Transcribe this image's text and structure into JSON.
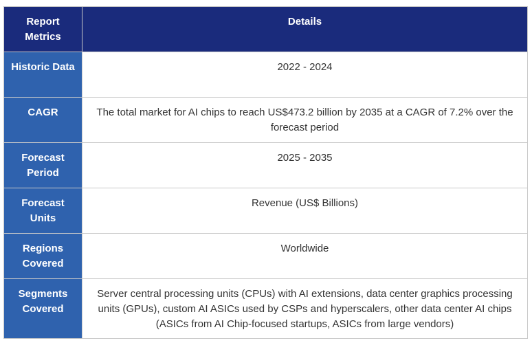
{
  "table": {
    "header": {
      "metric_label": "Report Metrics",
      "details_label": "Details"
    },
    "rows": [
      {
        "metric": "Historic Data",
        "details": "2022 - 2024"
      },
      {
        "metric": "CAGR",
        "details": "The total market for AI chips to reach US$473.2 billion by 2035 at a CAGR of 7.2% over the forecast period"
      },
      {
        "metric": "Forecast Period",
        "details": "2025 - 2035"
      },
      {
        "metric": "Forecast Units",
        "details": "Revenue (US$ Billions)"
      },
      {
        "metric": "Regions Covered",
        "details": "Worldwide"
      },
      {
        "metric": "Segments Covered",
        "details": "Server central processing units (CPUs) with AI extensions, data center graphics processing units (GPUs), custom AI ASICs used by CSPs and hyperscalers, other data center AI chips (ASICs from AI Chip-focused startups, ASICs from large vendors)"
      }
    ]
  },
  "colors": {
    "header_bg": "#1a2b7c",
    "metric_bg": "#2f62ae",
    "border": "#c9c9c9",
    "detail_text": "#333333"
  }
}
